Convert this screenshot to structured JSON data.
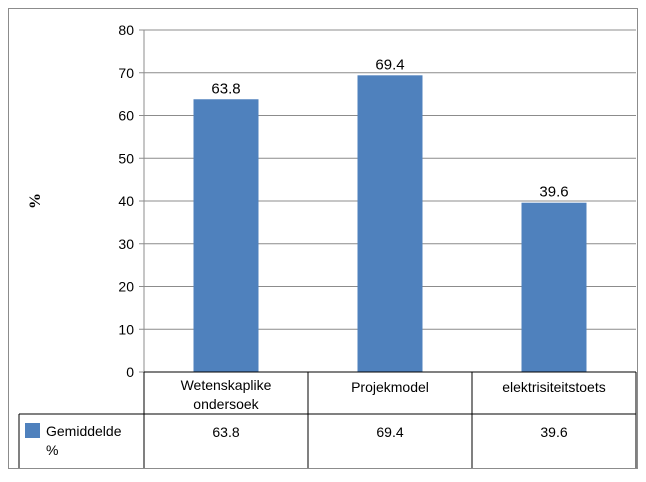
{
  "chart_data": {
    "type": "bar",
    "ylabel": "%",
    "ylim": [
      0,
      80
    ],
    "yticks": [
      0,
      10,
      20,
      30,
      40,
      50,
      60,
      70,
      80
    ],
    "categories": [
      [
        "Wetenskaplike",
        "ondersoek"
      ],
      [
        "Projekmodel"
      ],
      [
        "elektrisiteitstoets"
      ]
    ],
    "series": [
      {
        "name_lines": [
          "Gemiddelde",
          "%"
        ],
        "values": [
          63.8,
          69.4,
          39.6
        ],
        "value_labels": [
          "63.8",
          "69.4",
          "39.6"
        ],
        "color": "#4f81bd"
      }
    ],
    "data_labels": true,
    "grid": true,
    "legend_placement": "data-table"
  }
}
